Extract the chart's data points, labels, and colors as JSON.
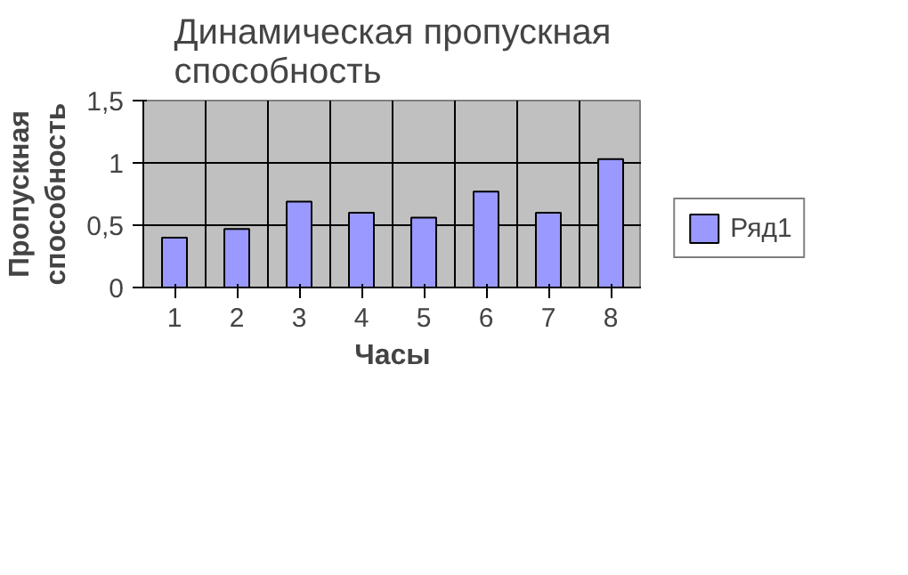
{
  "chart_data": {
    "type": "bar",
    "title": "Динамическая пропускная способность",
    "xlabel": "Часы",
    "ylabel": "Пропускная способность",
    "categories": [
      "1",
      "2",
      "3",
      "4",
      "5",
      "6",
      "7",
      "8"
    ],
    "series": [
      {
        "name": "Ряд1",
        "color": "#9999ff",
        "values": [
          0.4,
          0.47,
          0.69,
          0.6,
          0.56,
          0.77,
          0.6,
          1.03
        ]
      }
    ],
    "ylim": [
      0,
      1.5
    ],
    "yticks": [
      {
        "value": 0,
        "label": "0"
      },
      {
        "value": 0.5,
        "label": "0,5"
      },
      {
        "value": 1,
        "label": "1"
      },
      {
        "value": 1.5,
        "label": "1,5"
      }
    ],
    "grid": true,
    "legend": "right"
  }
}
